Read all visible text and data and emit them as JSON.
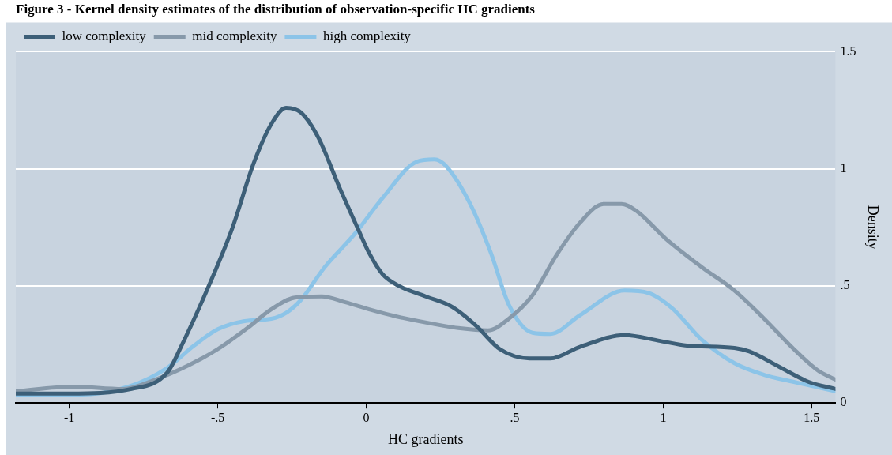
{
  "chart_data": {
    "type": "line",
    "title": "Figure 3 - Kernel density estimates of the distribution of observation-specific HC gradients",
    "xlabel": "HC gradients",
    "ylabel": "Density",
    "xlim": [
      -1.18,
      1.58
    ],
    "ylim": [
      0,
      1.5
    ],
    "xticks": [
      -1,
      {
        "value": -0.5,
        "label": "-.5"
      },
      0,
      {
        "value": 0.5,
        "label": ".5"
      },
      1,
      1.5
    ],
    "yticks": [
      0,
      {
        "value": 0.5,
        "label": ".5"
      },
      1,
      1.5
    ],
    "grid": "y",
    "legend": "top left",
    "marker": "none",
    "line_style": "solid",
    "series": [
      {
        "name": "low complexity",
        "color": "#3d5f78",
        "x": [
          -1.18,
          -1.0,
          -0.79,
          -0.67,
          -0.62,
          -0.52,
          -0.45,
          -0.38,
          -0.32,
          -0.27,
          -0.22,
          -0.16,
          -0.09,
          -0.03,
          0.01,
          0.055,
          0.11,
          0.2,
          0.29,
          0.37,
          0.45,
          0.55,
          0.62,
          0.72,
          0.87,
          0.99,
          1.08,
          1.24,
          1.29,
          1.39,
          1.49,
          1.58
        ],
        "values": [
          0.04,
          0.04,
          0.06,
          0.13,
          0.25,
          0.53,
          0.75,
          1.02,
          1.19,
          1.26,
          1.24,
          1.13,
          0.92,
          0.75,
          0.64,
          0.55,
          0.5,
          0.455,
          0.41,
          0.33,
          0.23,
          0.19,
          0.19,
          0.24,
          0.29,
          0.265,
          0.245,
          0.235,
          0.22,
          0.155,
          0.09,
          0.06
        ]
      },
      {
        "name": "mid complexity",
        "color": "#8799aa",
        "x": [
          -1.18,
          -0.99,
          -0.82,
          -0.71,
          -0.6,
          -0.5,
          -0.4,
          -0.32,
          -0.24,
          -0.15,
          -0.07,
          0.01,
          0.1,
          0.26,
          0.31,
          0.41,
          0.48,
          0.56,
          0.64,
          0.72,
          0.8,
          0.86,
          0.91,
          1.01,
          1.13,
          1.24,
          1.34,
          1.44,
          1.52,
          1.58
        ],
        "values": [
          0.05,
          0.07,
          0.06,
          0.1,
          0.16,
          0.23,
          0.32,
          0.4,
          0.45,
          0.455,
          0.43,
          0.4,
          0.37,
          0.33,
          0.32,
          0.31,
          0.36,
          0.46,
          0.63,
          0.77,
          0.85,
          0.85,
          0.82,
          0.7,
          0.58,
          0.48,
          0.36,
          0.23,
          0.14,
          0.1
        ]
      },
      {
        "name": "high complexity",
        "color": "#8cc4e8",
        "x": [
          -1.18,
          -0.97,
          -0.8,
          -0.67,
          -0.58,
          -0.5,
          -0.41,
          -0.32,
          -0.27,
          -0.22,
          -0.14,
          -0.04,
          0.055,
          0.17,
          0.23,
          0.27,
          0.35,
          0.42,
          0.48,
          0.56,
          0.62,
          0.72,
          0.87,
          0.95,
          1.03,
          1.13,
          1.24,
          1.34,
          1.44,
          1.58
        ],
        "values": [
          0.035,
          0.035,
          0.07,
          0.15,
          0.245,
          0.315,
          0.35,
          0.36,
          0.385,
          0.44,
          0.58,
          0.72,
          0.875,
          1.03,
          1.04,
          1.01,
          0.85,
          0.64,
          0.42,
          0.3,
          0.295,
          0.375,
          0.48,
          0.47,
          0.405,
          0.27,
          0.17,
          0.12,
          0.09,
          0.05
        ]
      }
    ]
  }
}
